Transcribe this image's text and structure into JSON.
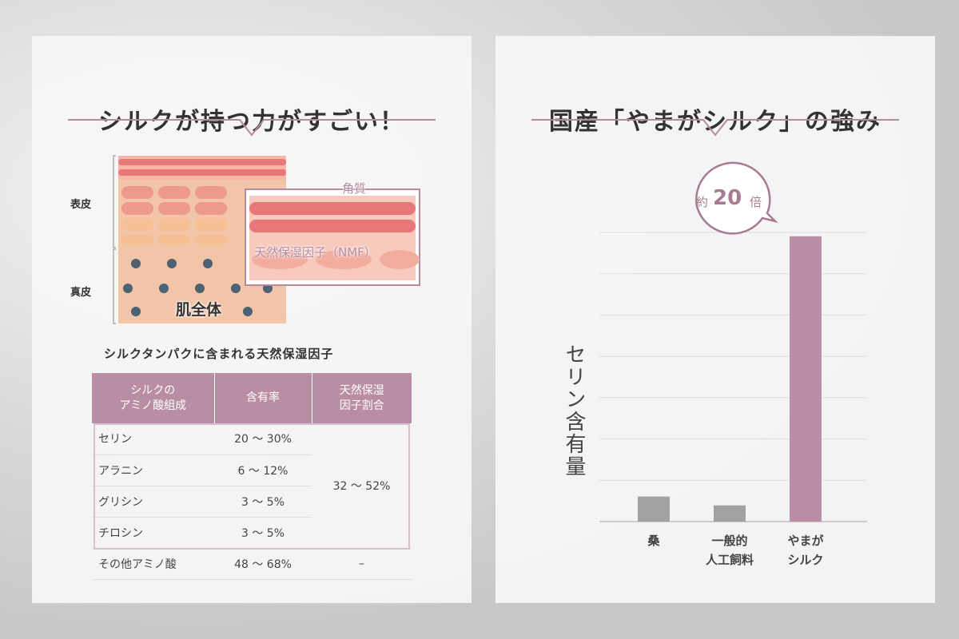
{
  "left": {
    "title": "シルクが持つ力がすごい！",
    "diagram": {
      "epidermis": "表皮",
      "dermis": "真皮",
      "whole_skin": "肌全体",
      "stratum_corneum": "角質",
      "nmf": "天然保湿因子（NMF）"
    },
    "table": {
      "title": "シルクタンパクに含まれる天然保湿因子",
      "headers": [
        "シルクの\nアミノ酸組成",
        "含有率",
        "天然保湿\n因子割合"
      ],
      "rows": [
        {
          "name": "セリン",
          "rate": "20 ～ 30%"
        },
        {
          "name": "アラニン",
          "rate": "6 ～ 12%"
        },
        {
          "name": "グリシン",
          "rate": "3 ～ 5%"
        },
        {
          "name": "チロシン",
          "rate": "3 ～ 5%"
        },
        {
          "name": "その他アミノ酸",
          "rate": "48 ～ 68%",
          "nmf": "–"
        }
      ],
      "nmf_group": "32 ～ 52%"
    }
  },
  "right": {
    "title": "国産「やまがシルク」の強み"
  },
  "chart_data": {
    "type": "bar",
    "title": "",
    "ylabel": "セリン含有量",
    "categories": [
      "桑",
      "一般的\n人工飼料",
      "やまが\nシルク"
    ],
    "values": [
      0.65,
      0.42,
      7.4
    ],
    "ylim": [
      0,
      7.5
    ],
    "grid": true,
    "colors": [
      "#a2a2a5",
      "#a2a2a5",
      "#bb8ea6"
    ],
    "annotation": {
      "prefix": "約",
      "value": "20",
      "suffix": "倍"
    }
  },
  "colors": {
    "accent": "#b98ea4",
    "bar_gray": "#a2a2a5"
  }
}
